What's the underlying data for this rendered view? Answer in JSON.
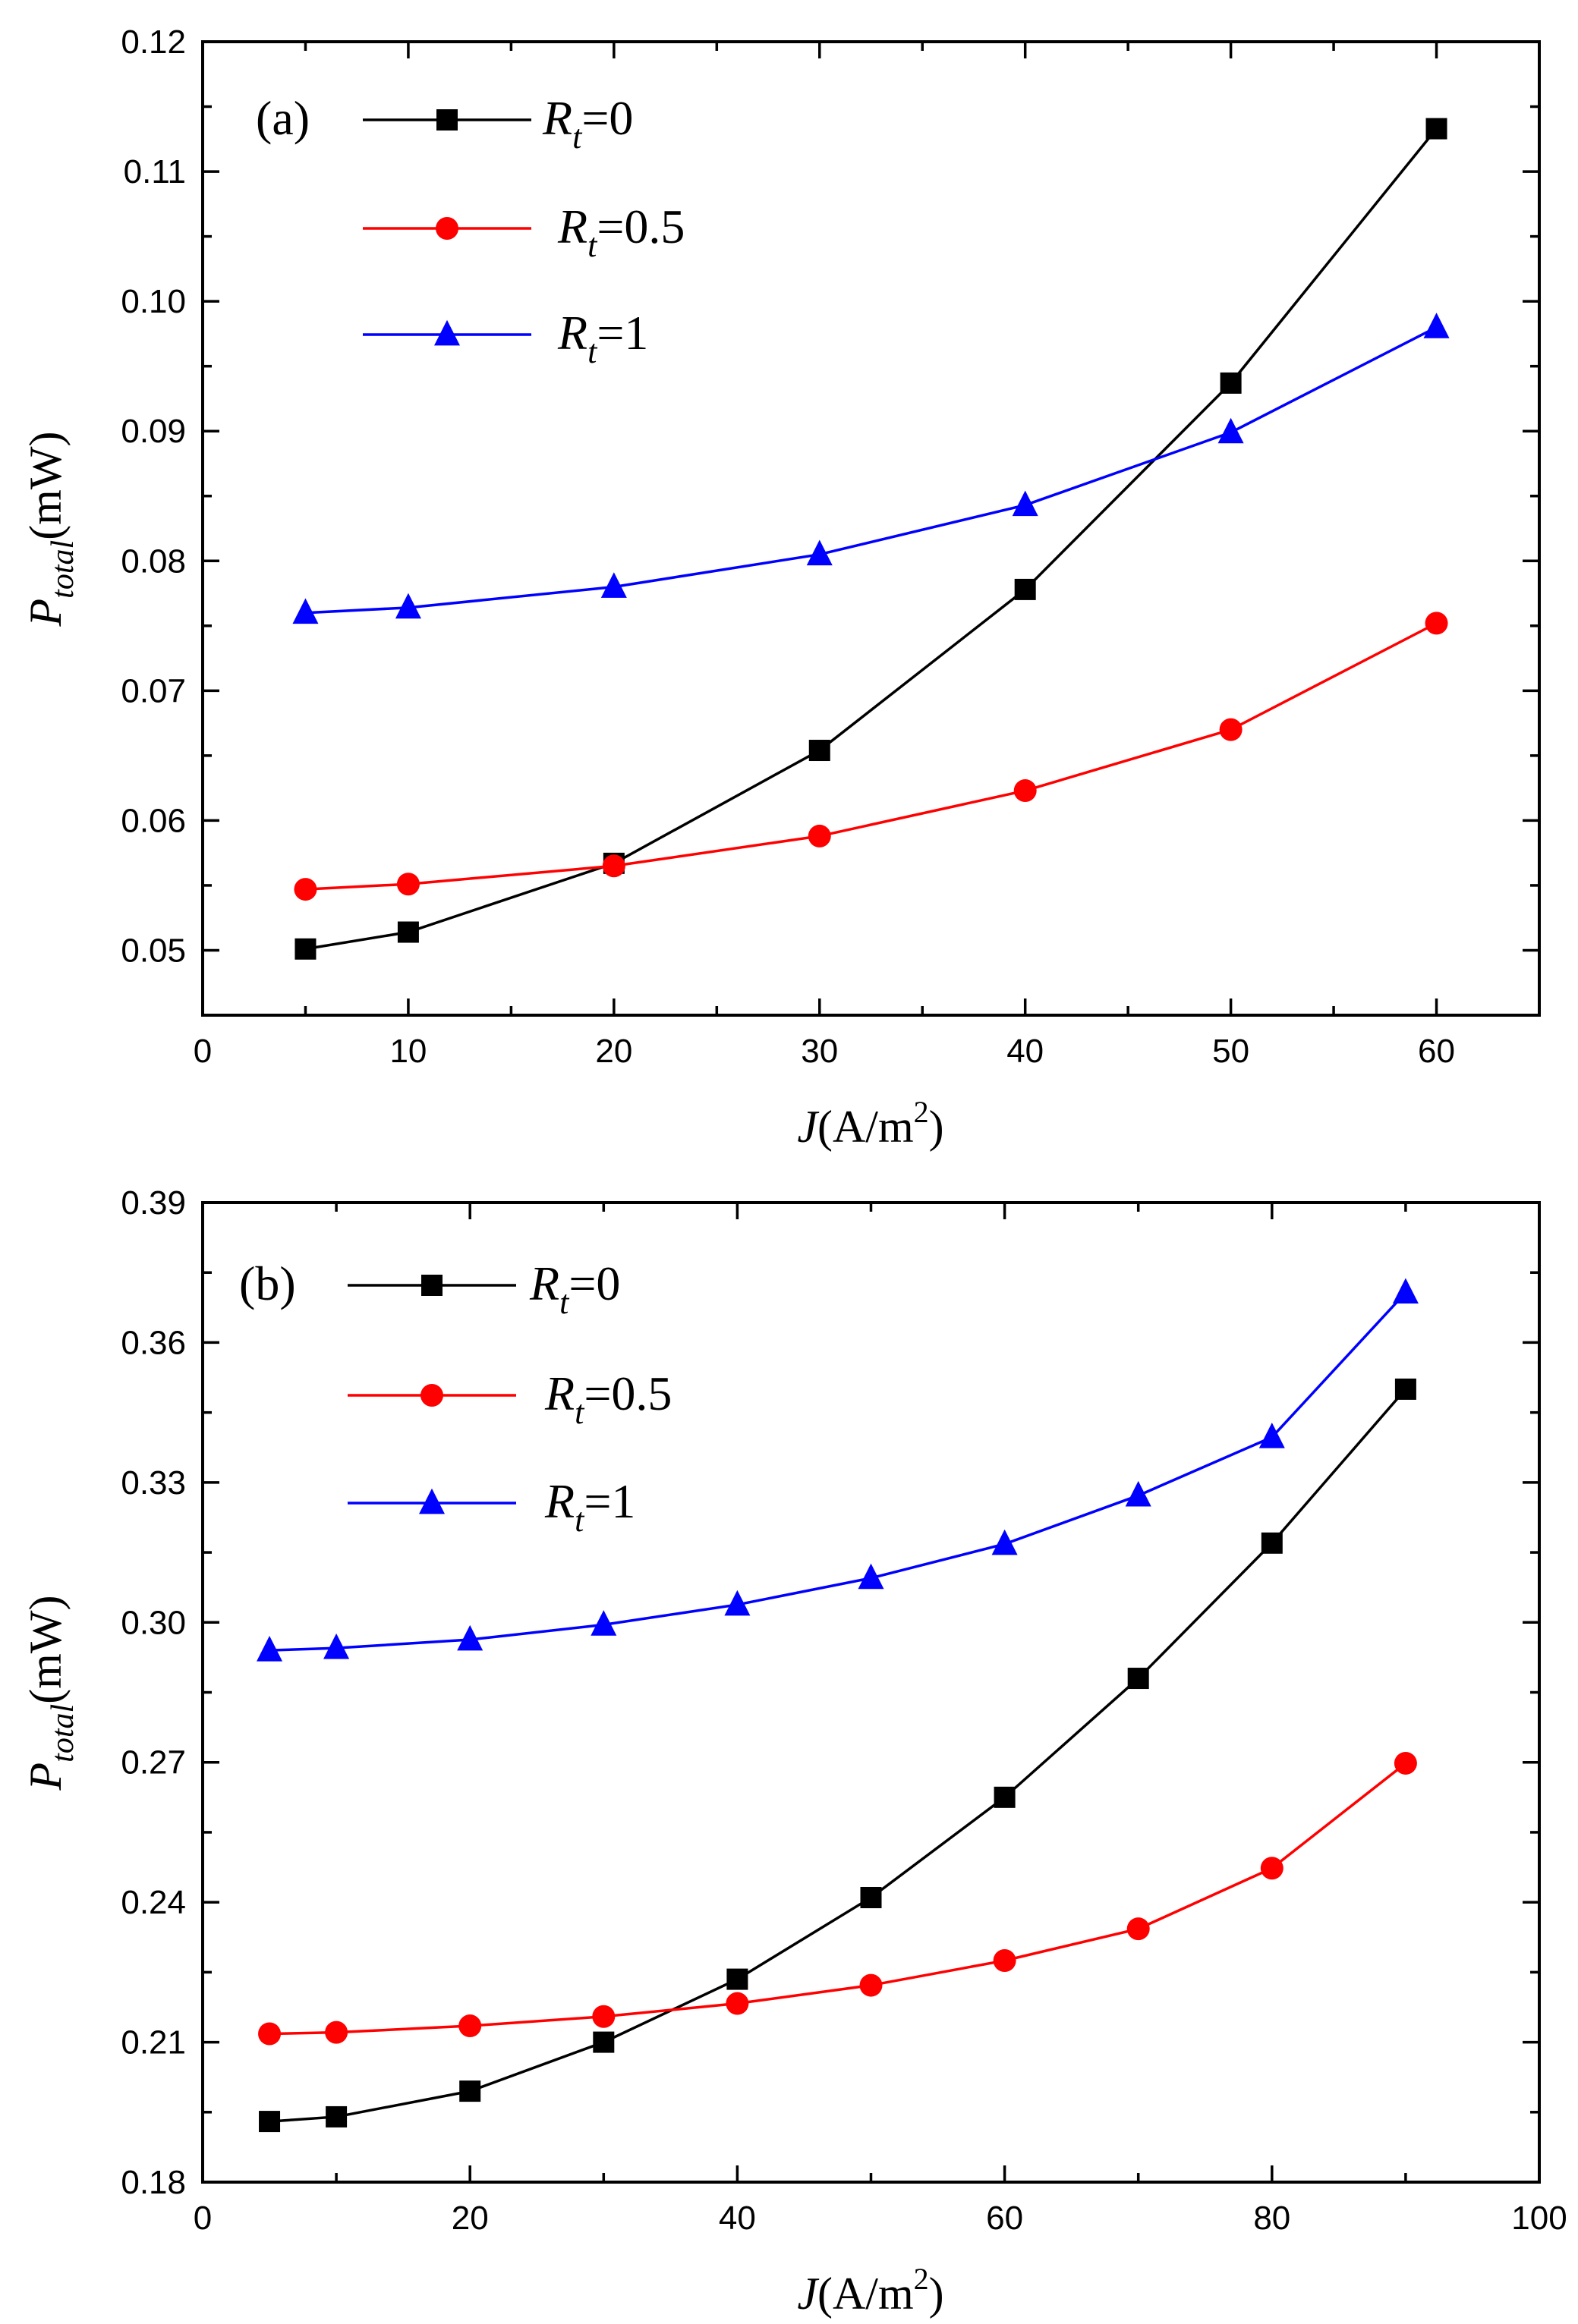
{
  "chart_data": [
    {
      "type": "line",
      "panel_label": "(a)",
      "xlabel_main": "J",
      "xlabel_unit_open": "(A/m",
      "xlabel_unit_sup": "2",
      "xlabel_unit_close": ")",
      "ylabel_main": "P",
      "ylabel_sub": "total",
      "ylabel_unit": "(mW)",
      "xlim": [
        0,
        65
      ],
      "ylim": [
        0.045,
        0.12
      ],
      "xticks": [
        0,
        10,
        20,
        30,
        40,
        50,
        60
      ],
      "xtick_labels": [
        "0",
        "10",
        "20",
        "30",
        "40",
        "50",
        "60"
      ],
      "yticks": [
        0.05,
        0.06,
        0.07,
        0.08,
        0.09,
        0.1,
        0.11,
        0.12
      ],
      "ytick_labels": [
        "0.05",
        "0.06",
        "0.07",
        "0.08",
        "0.09",
        "0.10",
        "0.11",
        "0.12"
      ],
      "legend_position": "top-left",
      "series": [
        {
          "name_main": "R",
          "name_sub": "t",
          "name_value": "=0",
          "color": "#000000",
          "marker": "square",
          "x": [
            5,
            10,
            20,
            30,
            40,
            50,
            60
          ],
          "values": [
            0.0501,
            0.0514,
            0.0567,
            0.0654,
            0.0778,
            0.0937,
            0.1133
          ]
        },
        {
          "name_main": "R",
          "name_sub": "t",
          "name_value": "=0.5",
          "color": "#ff0000",
          "marker": "circle",
          "x": [
            5,
            10,
            20,
            30,
            40,
            50,
            60
          ],
          "values": [
            0.0547,
            0.0551,
            0.0565,
            0.0588,
            0.0623,
            0.067,
            0.0752
          ]
        },
        {
          "name_main": "R",
          "name_sub": "t",
          "name_value": "=1",
          "color": "#0000ff",
          "marker": "triangle",
          "x": [
            5,
            10,
            20,
            30,
            40,
            50,
            60
          ],
          "values": [
            0.076,
            0.0764,
            0.078,
            0.0805,
            0.0843,
            0.0899,
            0.098
          ]
        }
      ]
    },
    {
      "type": "line",
      "panel_label": "(b)",
      "xlabel_main": "J",
      "xlabel_unit_open": "(A/m",
      "xlabel_unit_sup": "2",
      "xlabel_unit_close": ")",
      "ylabel_main": "P",
      "ylabel_sub": "total",
      "ylabel_unit": "(mW)",
      "xlim": [
        0,
        100
      ],
      "ylim": [
        0.18,
        0.39
      ],
      "xticks": [
        0,
        20,
        40,
        60,
        80,
        100
      ],
      "xtick_labels": [
        "0",
        "20",
        "40",
        "60",
        "80",
        "100"
      ],
      "yticks": [
        0.18,
        0.21,
        0.24,
        0.27,
        0.3,
        0.33,
        0.36,
        0.39
      ],
      "ytick_labels": [
        "0.18",
        "0.21",
        "0.24",
        "0.27",
        "0.30",
        "0.33",
        "0.36",
        "0.39"
      ],
      "legend_position": "top-left",
      "series": [
        {
          "name_main": "R",
          "name_sub": "t",
          "name_value": "=0",
          "color": "#000000",
          "marker": "square",
          "x": [
            5,
            10,
            20,
            30,
            40,
            50,
            60,
            70,
            80,
            90
          ],
          "values": [
            0.193,
            0.194,
            0.1995,
            0.21,
            0.2235,
            0.241,
            0.2625,
            0.288,
            0.317,
            0.35
          ]
        },
        {
          "name_main": "R",
          "name_sub": "t",
          "name_value": "=0.5",
          "color": "#ff0000",
          "marker": "circle",
          "x": [
            5,
            10,
            20,
            30,
            40,
            50,
            60,
            70,
            80,
            90
          ],
          "values": [
            0.2118,
            0.2121,
            0.2135,
            0.2155,
            0.2183,
            0.2222,
            0.2275,
            0.2343,
            0.2473,
            0.2698
          ]
        },
        {
          "name_main": "R",
          "name_sub": "t",
          "name_value": "=1",
          "color": "#0000ff",
          "marker": "triangle",
          "x": [
            5,
            10,
            20,
            30,
            40,
            50,
            60,
            70,
            80,
            90
          ],
          "values": [
            0.294,
            0.2945,
            0.2963,
            0.2995,
            0.3038,
            0.3095,
            0.3168,
            0.3272,
            0.3397,
            0.3707
          ]
        }
      ]
    }
  ]
}
